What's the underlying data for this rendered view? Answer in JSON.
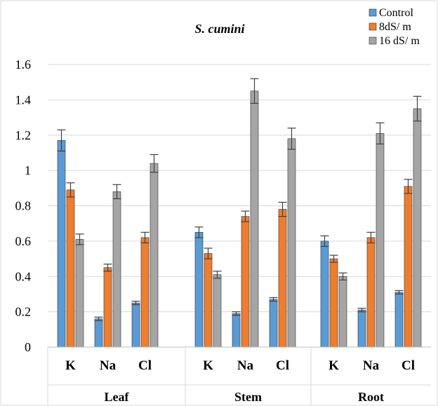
{
  "chart_data": {
    "type": "bar",
    "title": "S. cumini",
    "groups": [
      "Leaf",
      "Stem",
      "Root"
    ],
    "categories": [
      "K",
      "Na",
      "Cl"
    ],
    "series": [
      {
        "name": "Control",
        "color": "#5B9BD5",
        "values": [
          [
            1.17,
            0.16,
            0.25
          ],
          [
            0.65,
            0.19,
            0.27
          ],
          [
            0.6,
            0.21,
            0.31
          ]
        ],
        "errors": [
          [
            0.06,
            0.01,
            0.01
          ],
          [
            0.03,
            0.01,
            0.01
          ],
          [
            0.03,
            0.01,
            0.01
          ]
        ]
      },
      {
        "name": "8dS/ m",
        "color": "#ED7D31",
        "values": [
          [
            0.89,
            0.45,
            0.62
          ],
          [
            0.53,
            0.74,
            0.78
          ],
          [
            0.5,
            0.62,
            0.91
          ]
        ],
        "errors": [
          [
            0.04,
            0.02,
            0.03
          ],
          [
            0.03,
            0.03,
            0.04
          ],
          [
            0.02,
            0.03,
            0.04
          ]
        ]
      },
      {
        "name": "16 dS/ m",
        "color": "#A5A5A5",
        "values": [
          [
            0.61,
            0.88,
            1.04
          ],
          [
            0.41,
            1.45,
            1.18
          ],
          [
            0.4,
            1.21,
            1.35
          ]
        ],
        "errors": [
          [
            0.03,
            0.04,
            0.05
          ],
          [
            0.02,
            0.07,
            0.06
          ],
          [
            0.02,
            0.06,
            0.07
          ]
        ]
      }
    ],
    "ylim": [
      0,
      1.6
    ],
    "yticks": [
      "0",
      "0.2",
      "0.4",
      "0.6",
      "0.8",
      "1",
      "1.2",
      "1.4",
      "1.6"
    ],
    "grid": true,
    "legend_position": "top-right"
  }
}
